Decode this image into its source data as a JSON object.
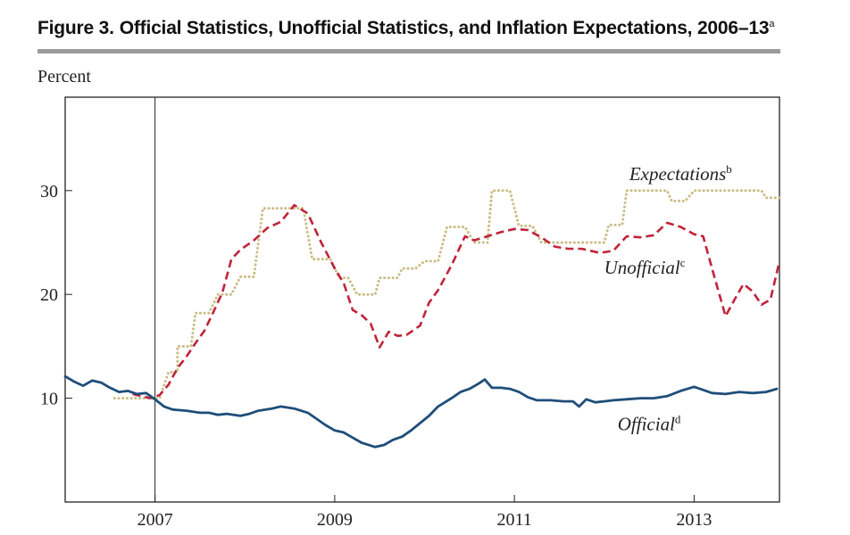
{
  "figure": {
    "number": "Figure 3.",
    "title": "Official Statistics, Unofficial Statistics, and Inflation Expectations, 2006–13",
    "title_note": "a"
  },
  "chart_data": {
    "type": "line",
    "y_unit_label": "Percent",
    "xlim": [
      2006.0,
      2013.95
    ],
    "ylim": [
      0,
      39
    ],
    "x_ticks": [
      2007,
      2009,
      2011,
      2013
    ],
    "x_tick_labels": [
      "2007",
      "2009",
      "2011",
      "2013"
    ],
    "y_ticks": [
      10,
      20,
      30
    ],
    "y_tick_labels": [
      "10",
      "20",
      "30"
    ],
    "reference_line_x": 2007.0,
    "grid": false,
    "series": [
      {
        "name": "Official",
        "note": "d",
        "style": "solid",
        "color": "#1f4e79",
        "points": [
          [
            2006.0,
            12.1
          ],
          [
            2006.1,
            11.6
          ],
          [
            2006.2,
            11.2
          ],
          [
            2006.3,
            11.7
          ],
          [
            2006.4,
            11.5
          ],
          [
            2006.5,
            11.0
          ],
          [
            2006.6,
            10.6
          ],
          [
            2006.7,
            10.7
          ],
          [
            2006.8,
            10.4
          ],
          [
            2006.9,
            10.5
          ],
          [
            2007.0,
            9.9
          ],
          [
            2007.1,
            9.2
          ],
          [
            2007.2,
            8.9
          ],
          [
            2007.35,
            8.8
          ],
          [
            2007.5,
            8.6
          ],
          [
            2007.6,
            8.6
          ],
          [
            2007.7,
            8.4
          ],
          [
            2007.8,
            8.5
          ],
          [
            2007.95,
            8.3
          ],
          [
            2008.05,
            8.5
          ],
          [
            2008.15,
            8.8
          ],
          [
            2008.3,
            9.0
          ],
          [
            2008.4,
            9.2
          ],
          [
            2008.55,
            9.0
          ],
          [
            2008.7,
            8.6
          ],
          [
            2008.8,
            8.0
          ],
          [
            2008.9,
            7.4
          ],
          [
            2009.0,
            6.9
          ],
          [
            2009.1,
            6.7
          ],
          [
            2009.2,
            6.2
          ],
          [
            2009.3,
            5.7
          ],
          [
            2009.45,
            5.3
          ],
          [
            2009.55,
            5.5
          ],
          [
            2009.65,
            6.0
          ],
          [
            2009.75,
            6.3
          ],
          [
            2009.85,
            6.9
          ],
          [
            2009.95,
            7.6
          ],
          [
            2010.05,
            8.3
          ],
          [
            2010.15,
            9.2
          ],
          [
            2010.3,
            10.0
          ],
          [
            2010.4,
            10.6
          ],
          [
            2010.5,
            10.9
          ],
          [
            2010.6,
            11.4
          ],
          [
            2010.67,
            11.8
          ],
          [
            2010.75,
            11.0
          ],
          [
            2010.85,
            11.0
          ],
          [
            2010.95,
            10.9
          ],
          [
            2011.05,
            10.6
          ],
          [
            2011.15,
            10.1
          ],
          [
            2011.25,
            9.8
          ],
          [
            2011.4,
            9.8
          ],
          [
            2011.55,
            9.7
          ],
          [
            2011.65,
            9.7
          ],
          [
            2011.72,
            9.2
          ],
          [
            2011.8,
            9.9
          ],
          [
            2011.9,
            9.6
          ],
          [
            2012.0,
            9.7
          ],
          [
            2012.1,
            9.8
          ],
          [
            2012.25,
            9.9
          ],
          [
            2012.4,
            10.0
          ],
          [
            2012.55,
            10.0
          ],
          [
            2012.7,
            10.2
          ],
          [
            2012.85,
            10.7
          ],
          [
            2013.0,
            11.1
          ],
          [
            2013.1,
            10.8
          ],
          [
            2013.2,
            10.5
          ],
          [
            2013.35,
            10.4
          ],
          [
            2013.5,
            10.6
          ],
          [
            2013.65,
            10.5
          ],
          [
            2013.8,
            10.6
          ],
          [
            2013.92,
            10.9
          ]
        ]
      },
      {
        "name": "Unofficial",
        "note": "c",
        "style": "dashed",
        "color": "#c0243a",
        "points": [
          [
            2006.75,
            10.4
          ],
          [
            2006.85,
            10.2
          ],
          [
            2006.95,
            10.0
          ],
          [
            2007.05,
            10.3
          ],
          [
            2007.15,
            11.3
          ],
          [
            2007.25,
            12.9
          ],
          [
            2007.35,
            14.0
          ],
          [
            2007.45,
            15.3
          ],
          [
            2007.55,
            16.5
          ],
          [
            2007.65,
            18.3
          ],
          [
            2007.75,
            20.2
          ],
          [
            2007.85,
            23.4
          ],
          [
            2007.95,
            24.3
          ],
          [
            2008.1,
            25.2
          ],
          [
            2008.25,
            26.4
          ],
          [
            2008.4,
            27.0
          ],
          [
            2008.55,
            28.6
          ],
          [
            2008.7,
            27.8
          ],
          [
            2008.85,
            25.0
          ],
          [
            2009.0,
            22.5
          ],
          [
            2009.1,
            21.1
          ],
          [
            2009.2,
            18.5
          ],
          [
            2009.3,
            18.0
          ],
          [
            2009.4,
            17.2
          ],
          [
            2009.5,
            14.9
          ],
          [
            2009.6,
            16.4
          ],
          [
            2009.7,
            16.0
          ],
          [
            2009.8,
            16.1
          ],
          [
            2009.95,
            17.0
          ],
          [
            2010.05,
            19.2
          ],
          [
            2010.15,
            20.4
          ],
          [
            2010.3,
            22.8
          ],
          [
            2010.45,
            25.6
          ],
          [
            2010.55,
            25.2
          ],
          [
            2010.7,
            25.6
          ],
          [
            2010.85,
            26.0
          ],
          [
            2011.0,
            26.3
          ],
          [
            2011.15,
            26.2
          ],
          [
            2011.3,
            25.5
          ],
          [
            2011.45,
            24.6
          ],
          [
            2011.6,
            24.4
          ],
          [
            2011.75,
            24.4
          ],
          [
            2011.85,
            24.2
          ],
          [
            2011.95,
            24.0
          ],
          [
            2012.1,
            24.2
          ],
          [
            2012.25,
            25.6
          ],
          [
            2012.4,
            25.5
          ],
          [
            2012.55,
            25.7
          ],
          [
            2012.7,
            26.9
          ],
          [
            2012.85,
            26.5
          ],
          [
            2013.0,
            25.8
          ],
          [
            2013.1,
            25.6
          ],
          [
            2013.2,
            22.5
          ],
          [
            2013.35,
            17.9
          ],
          [
            2013.45,
            19.5
          ],
          [
            2013.55,
            21.0
          ],
          [
            2013.65,
            20.3
          ],
          [
            2013.75,
            19.0
          ],
          [
            2013.85,
            19.5
          ],
          [
            2013.95,
            23.2
          ]
        ]
      },
      {
        "name": "Expectations",
        "note": "b",
        "style": "dotted",
        "color": "#c9bd84",
        "points": [
          [
            2006.55,
            10.0
          ],
          [
            2006.85,
            10.0
          ],
          [
            2007.05,
            10.0
          ],
          [
            2007.15,
            12.5
          ],
          [
            2007.25,
            12.5
          ],
          [
            2007.25,
            15.0
          ],
          [
            2007.4,
            15.0
          ],
          [
            2007.45,
            18.2
          ],
          [
            2007.6,
            18.2
          ],
          [
            2007.7,
            20.0
          ],
          [
            2007.85,
            20.0
          ],
          [
            2007.95,
            21.7
          ],
          [
            2008.1,
            21.7
          ],
          [
            2008.2,
            28.3
          ],
          [
            2008.45,
            28.3
          ],
          [
            2008.65,
            28.3
          ],
          [
            2008.75,
            23.4
          ],
          [
            2008.95,
            23.4
          ],
          [
            2009.05,
            21.6
          ],
          [
            2009.15,
            21.6
          ],
          [
            2009.25,
            20.0
          ],
          [
            2009.45,
            20.0
          ],
          [
            2009.5,
            21.6
          ],
          [
            2009.7,
            21.6
          ],
          [
            2009.75,
            22.5
          ],
          [
            2009.9,
            22.5
          ],
          [
            2010.0,
            23.2
          ],
          [
            2010.15,
            23.2
          ],
          [
            2010.25,
            26.5
          ],
          [
            2010.45,
            26.5
          ],
          [
            2010.55,
            25.0
          ],
          [
            2010.7,
            25.0
          ],
          [
            2010.75,
            30.0
          ],
          [
            2010.95,
            30.0
          ],
          [
            2011.05,
            26.6
          ],
          [
            2011.2,
            26.6
          ],
          [
            2011.3,
            25.0
          ],
          [
            2011.6,
            25.0
          ],
          [
            2011.9,
            25.0
          ],
          [
            2012.0,
            25.0
          ],
          [
            2012.05,
            26.7
          ],
          [
            2012.2,
            26.7
          ],
          [
            2012.25,
            30.0
          ],
          [
            2012.7,
            30.0
          ],
          [
            2012.75,
            29.0
          ],
          [
            2012.9,
            29.0
          ],
          [
            2013.0,
            30.0
          ],
          [
            2013.5,
            30.0
          ],
          [
            2013.75,
            30.0
          ],
          [
            2013.8,
            29.3
          ],
          [
            2013.95,
            29.3
          ]
        ]
      }
    ],
    "annotations": [
      {
        "series": "Expectations",
        "text": "Expectations",
        "note": "b",
        "x": 2012.85,
        "y": 31.0
      },
      {
        "series": "Unofficial",
        "text": "Unofficial",
        "note": "c",
        "x": 2012.45,
        "y": 22.0
      },
      {
        "series": "Official",
        "text": "Official",
        "note": "d",
        "x": 2012.5,
        "y": 6.9
      }
    ]
  }
}
